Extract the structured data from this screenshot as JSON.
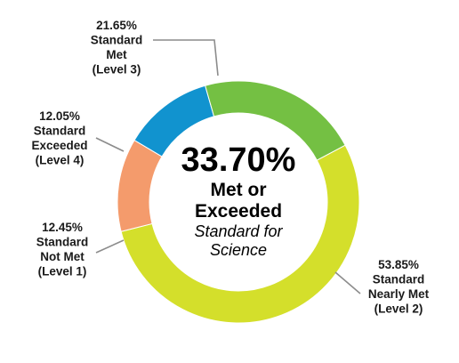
{
  "chart_data": {
    "type": "pie",
    "variant": "donut",
    "center": {
      "percent": "33.70%",
      "line1": "Met or",
      "line2": "Exceeded",
      "line3": "Standard for",
      "line4": "Science"
    },
    "slices": [
      {
        "value": 53.85,
        "color": "#d4df2b",
        "label": [
          "53.85%",
          "Standard",
          "Nearly Met",
          "(Level 2)"
        ]
      },
      {
        "value": 12.45,
        "color": "#f49b6c",
        "label": [
          "12.45%",
          "Standard",
          "Not Met",
          "(Level 1)"
        ]
      },
      {
        "value": 12.05,
        "color": "#1193cf",
        "label": [
          "12.05%",
          "Standard",
          "Exceeded",
          "(Level 4)"
        ]
      },
      {
        "value": 21.65,
        "color": "#74c043",
        "label": [
          "21.65%",
          "Standard",
          "Met",
          "(Level 3)"
        ]
      }
    ],
    "legend": "none"
  }
}
